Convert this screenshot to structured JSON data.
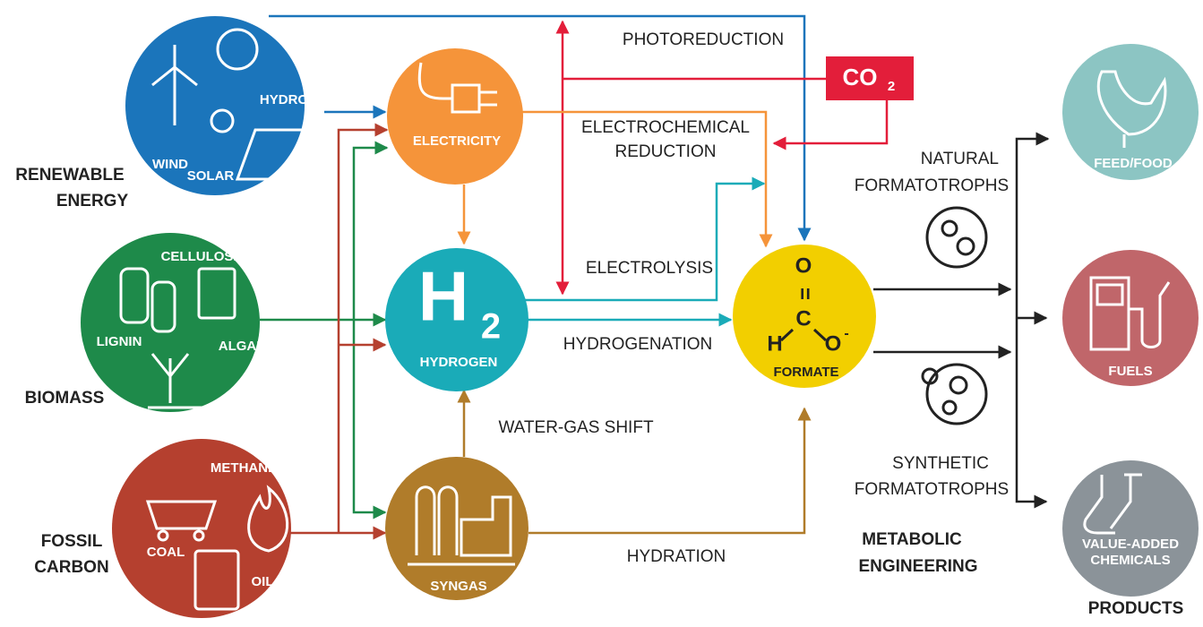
{
  "sources": [
    {
      "caption": [
        "RENEWABLE",
        "ENERGY"
      ],
      "items": [
        "WIND",
        "HYDRO",
        "SOLAR"
      ]
    },
    {
      "caption": [
        "BIOMASS"
      ],
      "items": [
        "CELLULOSE",
        "LIGNIN",
        "ALGAE"
      ]
    },
    {
      "caption": [
        "FOSSIL",
        "CARBON"
      ],
      "items": [
        "METHANE",
        "COAL",
        "OIL"
      ]
    }
  ],
  "intermediates": {
    "electricity": "ELECTRICITY",
    "hydrogen": {
      "symbol": "H",
      "subscript": "2",
      "label": "HYDROGEN"
    },
    "syngas": "SYNGAS",
    "co2": {
      "symbol": "CO",
      "subscript": "2"
    }
  },
  "formate": {
    "atoms": [
      "O",
      "C",
      "H",
      "O"
    ],
    "charge": "-",
    "bond": "=",
    "label": "FORMATE"
  },
  "processes": {
    "photoreduction": [
      "PHOTOREDUCTION"
    ],
    "electrochemical": [
      "ELECTROCHEMICAL",
      "REDUCTION"
    ],
    "electrolysis": [
      "ELECTROLYSIS"
    ],
    "hydrogenation": [
      "HYDROGENATION"
    ],
    "water_gas_shift": [
      "WATER-GAS SHIFT"
    ],
    "hydration": [
      "HYDRATION"
    ],
    "natural": [
      "NATURAL",
      "FORMATOTROPHS"
    ],
    "synthetic": [
      "SYNTHETIC",
      "FORMATOTROPHS"
    ],
    "metabolic": [
      "METABOLIC",
      "ENGINEERING"
    ]
  },
  "products": {
    "items": [
      [
        "FEED/FOOD"
      ],
      [
        "FUELS"
      ],
      [
        "VALUE-ADDED",
        "CHEMICALS"
      ]
    ],
    "caption": "PRODUCTS"
  }
}
